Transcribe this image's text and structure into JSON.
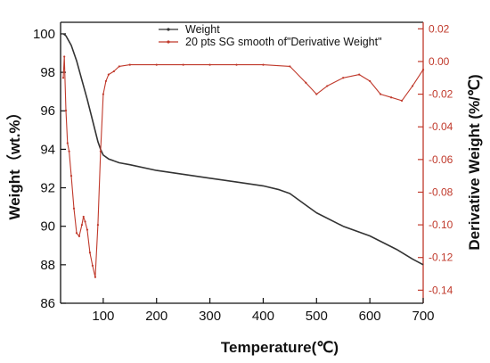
{
  "chart_data": {
    "type": "line",
    "title": "",
    "xlabel": "Temperature(℃)",
    "ylabel": "Weight（wt.%）",
    "y2label": "Derivative Weight (%/℃)",
    "xlim": [
      20,
      700
    ],
    "ylim": [
      86,
      100.6
    ],
    "y2lim": [
      -0.148,
      0.024
    ],
    "x_ticks": [
      100,
      200,
      300,
      400,
      500,
      600,
      700
    ],
    "y_ticks": [
      86,
      88,
      90,
      92,
      94,
      96,
      98,
      100
    ],
    "y2_ticks": [
      0.02,
      0.0,
      -0.02,
      -0.04,
      -0.06,
      -0.08,
      -0.1,
      -0.12,
      -0.14
    ],
    "y2_tick_labels": [
      "0.02",
      "0.00",
      "-0.02",
      "-0.04",
      "-0.06",
      "-0.08",
      "-0.10",
      "-0.12",
      "-0.14"
    ],
    "grid": false,
    "legend": "top-center",
    "series": [
      {
        "name": "Weight",
        "axis": "left",
        "color": "#333333",
        "x": [
          25,
          30,
          40,
          50,
          60,
          70,
          80,
          90,
          95,
          100,
          110,
          130,
          150,
          200,
          250,
          300,
          350,
          400,
          430,
          450,
          480,
          500,
          550,
          600,
          650,
          680,
          700
        ],
        "y": [
          100.0,
          99.9,
          99.4,
          98.6,
          97.6,
          96.6,
          95.5,
          94.4,
          94.0,
          93.7,
          93.5,
          93.3,
          93.2,
          92.9,
          92.7,
          92.5,
          92.3,
          92.1,
          91.9,
          91.7,
          91.1,
          90.7,
          90.0,
          89.5,
          88.8,
          88.3,
          88.0
        ]
      },
      {
        "name": "20 pts SG smooth of\"Derivative Weight\"",
        "axis": "right",
        "color": "#c0392b",
        "x": [
          25,
          27,
          30,
          33,
          36,
          40,
          45,
          50,
          55,
          60,
          63,
          66,
          70,
          75,
          80,
          85,
          90,
          95,
          100,
          105,
          110,
          120,
          130,
          150,
          200,
          250,
          300,
          350,
          400,
          450,
          480,
          500,
          520,
          550,
          580,
          600,
          620,
          640,
          660,
          680,
          700
        ],
        "y": [
          -0.01,
          0.003,
          -0.03,
          -0.05,
          -0.055,
          -0.07,
          -0.09,
          -0.105,
          -0.107,
          -0.1,
          -0.095,
          -0.098,
          -0.103,
          -0.117,
          -0.125,
          -0.132,
          -0.1,
          -0.055,
          -0.02,
          -0.012,
          -0.008,
          -0.006,
          -0.003,
          -0.002,
          -0.002,
          -0.002,
          -0.002,
          -0.002,
          -0.002,
          -0.003,
          -0.013,
          -0.02,
          -0.015,
          -0.01,
          -0.008,
          -0.012,
          -0.02,
          -0.022,
          -0.024,
          -0.015,
          -0.005
        ]
      }
    ]
  }
}
